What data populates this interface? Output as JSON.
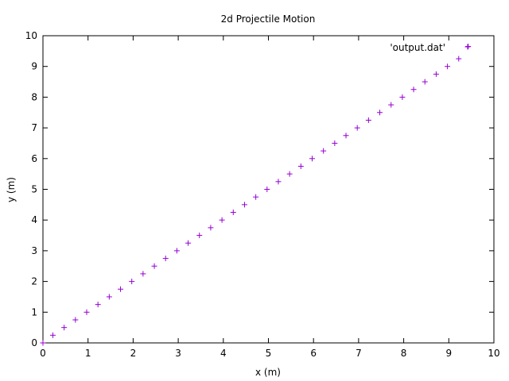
{
  "chart_data": {
    "type": "scatter",
    "title": "2d Projectile Motion",
    "xlabel": "x (m)",
    "ylabel": "y (m)",
    "xlim": [
      0,
      10
    ],
    "ylim": [
      0,
      10
    ],
    "xticks": [
      "0",
      "1",
      "2",
      "3",
      "4",
      "5",
      "6",
      "7",
      "8",
      "9",
      "10"
    ],
    "yticks": [
      "0",
      "1",
      "2",
      "3",
      "4",
      "5",
      "6",
      "7",
      "8",
      "9",
      "10"
    ],
    "grid": false,
    "legend_position": "top-right",
    "marker": "plus",
    "series": [
      {
        "name": "'output.dat'",
        "color": "#9400d3",
        "x": [
          0,
          0.22,
          0.47,
          0.72,
          0.97,
          1.22,
          1.47,
          1.72,
          1.97,
          2.22,
          2.47,
          2.72,
          2.97,
          3.22,
          3.47,
          3.72,
          3.97,
          4.22,
          4.47,
          4.72,
          4.97,
          5.22,
          5.47,
          5.72,
          5.97,
          6.22,
          6.47,
          6.72,
          6.97,
          7.22,
          7.47,
          7.72,
          7.97,
          8.22,
          8.47,
          8.72,
          8.97,
          9.22,
          9.43
        ],
        "y": [
          0,
          0.25,
          0.5,
          0.75,
          1.0,
          1.25,
          1.5,
          1.75,
          2.0,
          2.25,
          2.5,
          2.75,
          3.0,
          3.25,
          3.5,
          3.75,
          4.0,
          4.25,
          4.5,
          4.75,
          5.0,
          5.25,
          5.5,
          5.75,
          6.0,
          6.25,
          6.5,
          6.75,
          7.0,
          7.25,
          7.5,
          7.75,
          8.0,
          8.25,
          8.5,
          8.75,
          9.0,
          9.25,
          9.65
        ]
      }
    ]
  }
}
